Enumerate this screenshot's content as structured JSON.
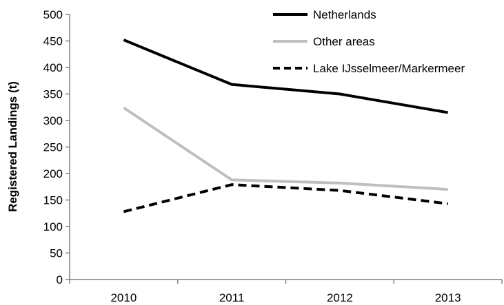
{
  "chart_data": {
    "type": "line",
    "x": [
      "2010",
      "2011",
      "2012",
      "2013"
    ],
    "ylabel": "Registered Landings (t)",
    "xlabel": "",
    "ylim": [
      0,
      500
    ],
    "yticks": [
      "0",
      "50",
      "100",
      "150",
      "200",
      "250",
      "300",
      "350",
      "400",
      "450",
      "500"
    ],
    "grid": false,
    "legend_position": "top-right",
    "series": [
      {
        "name": "Netherlands",
        "values": [
          452,
          368,
          350,
          315
        ],
        "color": "#000000",
        "style": "solid"
      },
      {
        "name": "Other areas",
        "values": [
          324,
          188,
          182,
          170
        ],
        "color": "#bfbfbf",
        "style": "solid"
      },
      {
        "name": "Lake IJsselmeer/Markermeer",
        "values": [
          128,
          179,
          168,
          143
        ],
        "color": "#000000",
        "style": "dashed"
      }
    ]
  }
}
